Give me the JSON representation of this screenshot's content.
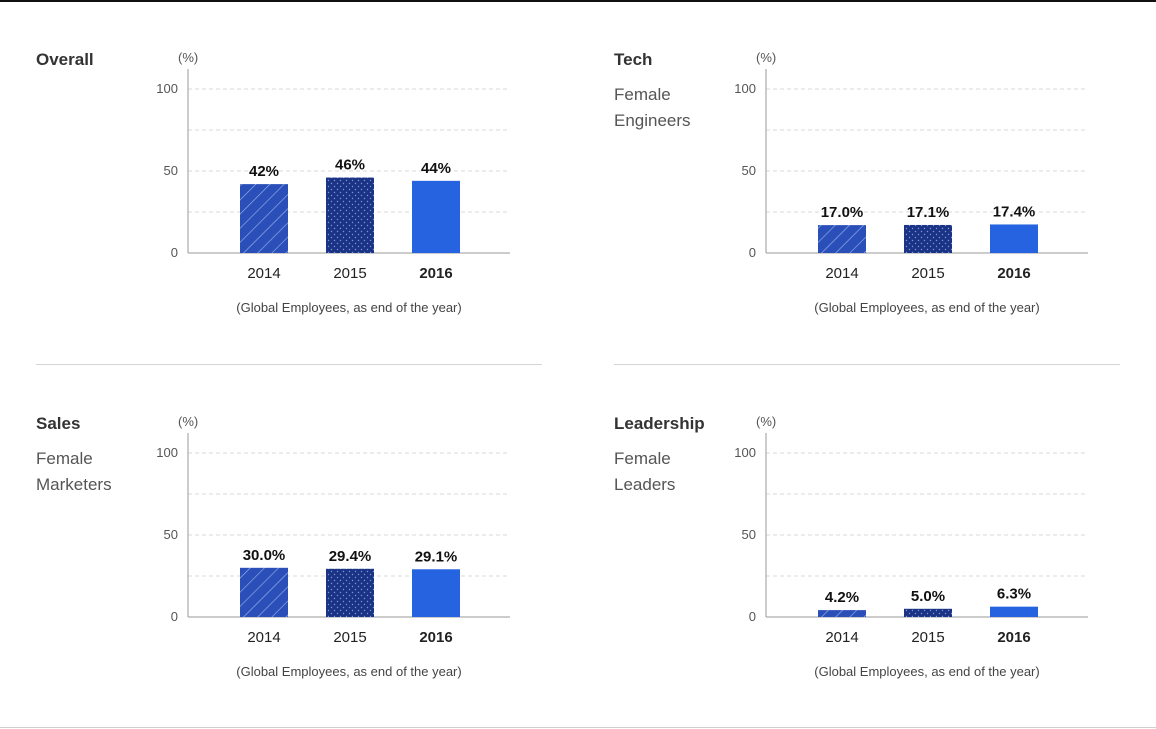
{
  "unit_label": "(%)",
  "footnote": "(Global Employees, as end of the year)",
  "colors": {
    "bar_2014": "#2a4fb8",
    "bar_2015": "#1a3385",
    "bar_2016": "#2563e0",
    "gridline": "#d8d8d8",
    "axis": "#9a9a9a"
  },
  "chart_data": [
    {
      "type": "bar",
      "title": "Overall",
      "subtitle": "",
      "ylabel": "(%)",
      "ylim": [
        0,
        100
      ],
      "yticks": [
        0,
        50,
        100
      ],
      "categories": [
        "2014",
        "2015",
        "2016"
      ],
      "values": [
        42,
        46,
        44
      ],
      "value_labels": [
        "42%",
        "46%",
        "44%"
      ],
      "note": "(Global Employees, as end of the year)",
      "grid": true
    },
    {
      "type": "bar",
      "title": "Tech",
      "subtitle": "Female Engineers",
      "ylabel": "(%)",
      "ylim": [
        0,
        100
      ],
      "yticks": [
        0,
        50,
        100
      ],
      "categories": [
        "2014",
        "2015",
        "2016"
      ],
      "values": [
        17.0,
        17.1,
        17.4
      ],
      "value_labels": [
        "17.0%",
        "17.1%",
        "17.4%"
      ],
      "note": "(Global Employees, as end of the year)",
      "grid": true
    },
    {
      "type": "bar",
      "title": "Sales",
      "subtitle": "Female Marketers",
      "ylabel": "(%)",
      "ylim": [
        0,
        100
      ],
      "yticks": [
        0,
        50,
        100
      ],
      "categories": [
        "2014",
        "2015",
        "2016"
      ],
      "values": [
        30.0,
        29.4,
        29.1
      ],
      "value_labels": [
        "30.0%",
        "29.4%",
        "29.1%"
      ],
      "note": "(Global Employees, as end of the year)",
      "grid": true
    },
    {
      "type": "bar",
      "title": "Leadership",
      "subtitle": "Female Leaders",
      "ylabel": "(%)",
      "ylim": [
        0,
        100
      ],
      "yticks": [
        0,
        50,
        100
      ],
      "categories": [
        "2014",
        "2015",
        "2016"
      ],
      "values": [
        4.2,
        5.0,
        6.3
      ],
      "value_labels": [
        "4.2%",
        "5.0%",
        "6.3%"
      ],
      "note": "(Global Employees, as end of the year)",
      "grid": true
    }
  ]
}
